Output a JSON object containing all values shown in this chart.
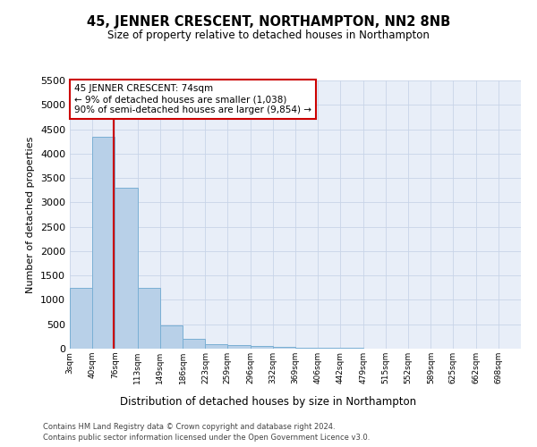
{
  "title": "45, JENNER CRESCENT, NORTHAMPTON, NN2 8NB",
  "subtitle": "Size of property relative to detached houses in Northampton",
  "xlabel": "Distribution of detached houses by size in Northampton",
  "ylabel": "Number of detached properties",
  "bar_color": "#b8d0e8",
  "bar_edge_color": "#7aafd4",
  "grid_color": "#c8d4e8",
  "background_color": "#e8eef8",
  "annotation_box_color": "#ffffff",
  "annotation_border_color": "#cc0000",
  "property_line_color": "#cc0000",
  "property_sqm": 74,
  "annotation_line1": "45 JENNER CRESCENT: 74sqm",
  "annotation_line2": "← 9% of detached houses are smaller (1,038)",
  "annotation_line3": "90% of semi-detached houses are larger (9,854) →",
  "footer_line1": "Contains HM Land Registry data © Crown copyright and database right 2024.",
  "footer_line2": "Contains public sector information licensed under the Open Government Licence v3.0.",
  "bin_edges": [
    3,
    40,
    76,
    113,
    149,
    186,
    223,
    259,
    296,
    332,
    369,
    406,
    442,
    479,
    515,
    552,
    589,
    625,
    662,
    698,
    735
  ],
  "bar_heights": [
    1250,
    4350,
    3300,
    1250,
    480,
    200,
    100,
    80,
    50,
    30,
    20,
    15,
    10,
    5,
    3,
    2,
    1,
    1,
    0,
    0
  ],
  "ylim": [
    0,
    5500
  ],
  "yticks": [
    0,
    500,
    1000,
    1500,
    2000,
    2500,
    3000,
    3500,
    4000,
    4500,
    5000,
    5500
  ],
  "xlim_left": 3,
  "xlim_right": 735
}
